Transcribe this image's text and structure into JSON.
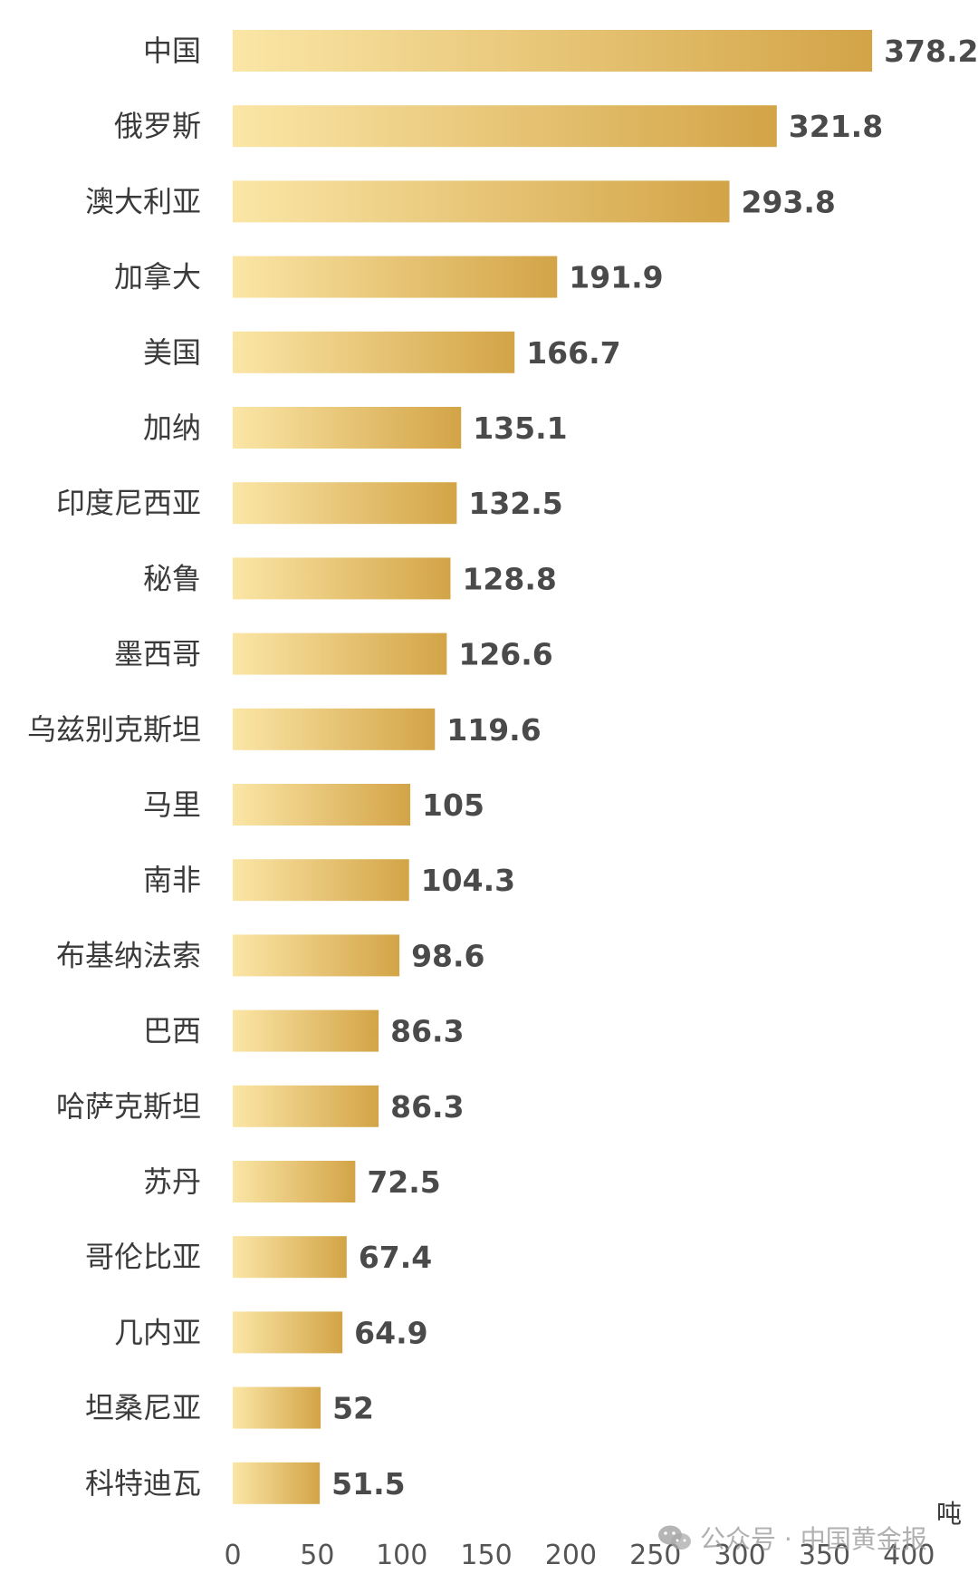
{
  "chart_data": {
    "type": "bar",
    "orientation": "horizontal",
    "categories": [
      "中国",
      "俄罗斯",
      "澳大利亚",
      "加拿大",
      "美国",
      "加纳",
      "印度尼西亚",
      "秘鲁",
      "墨西哥",
      "乌兹别克斯坦",
      "马里",
      "南非",
      "布基纳法索",
      "巴西",
      "哈萨克斯坦",
      "苏丹",
      "哥伦比亚",
      "几内亚",
      "坦桑尼亚",
      "科特迪瓦"
    ],
    "values": [
      378.2,
      321.8,
      293.8,
      191.9,
      166.7,
      135.1,
      132.5,
      128.8,
      126.6,
      119.6,
      105,
      104.3,
      98.6,
      86.3,
      86.3,
      72.5,
      67.4,
      64.9,
      52,
      51.5
    ],
    "value_labels": [
      "378.2",
      "321.8",
      "293.8",
      "191.9",
      "166.7",
      "135.1",
      "132.5",
      "128.8",
      "126.6",
      "119.6",
      "105",
      "104.3",
      "98.6",
      "86.3",
      "86.3",
      "72.5",
      "67.4",
      "64.9",
      "52",
      "51.5"
    ],
    "xticks": [
      "0",
      "50",
      "100",
      "150",
      "200",
      "250",
      "300",
      "350",
      "400"
    ],
    "xlim": [
      0,
      400
    ],
    "unit": "吨",
    "grid": false,
    "colors": {
      "bar_start": "#fbe6a6",
      "bar_end": "#d3a447",
      "value_text": "#4a4a4a",
      "category_text": "#3a3a3a"
    }
  },
  "watermark": {
    "icon": "wechat-icon",
    "text": "公众号 · 中国黄金报"
  }
}
